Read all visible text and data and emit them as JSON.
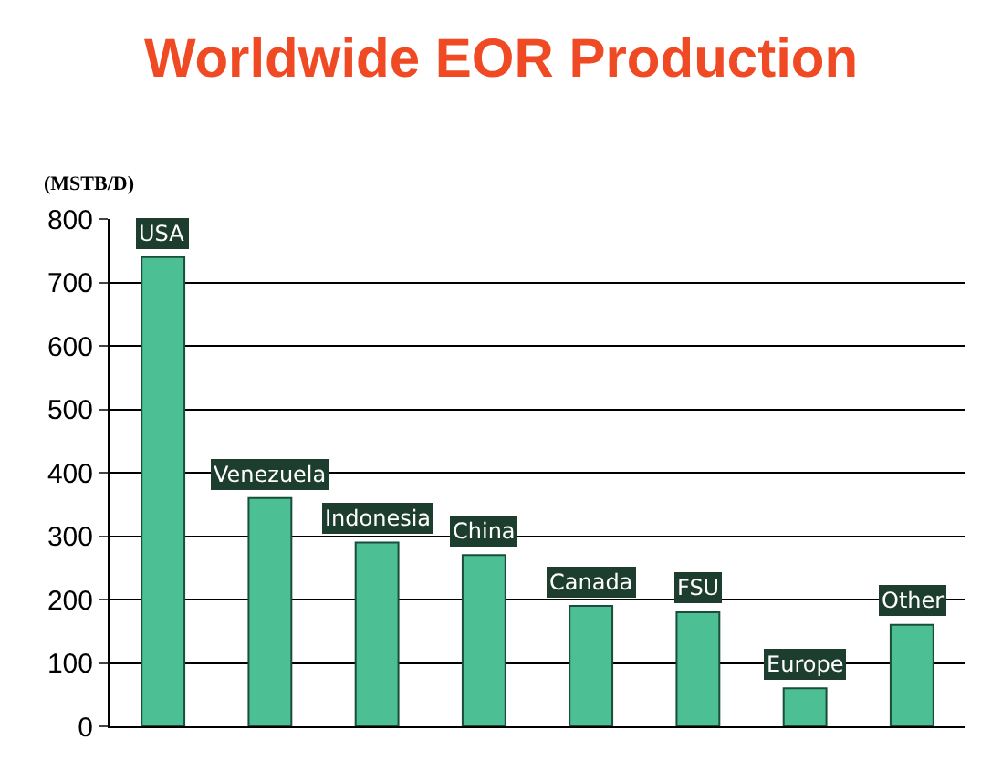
{
  "chart_data": {
    "type": "bar",
    "title": "Worldwide EOR Production",
    "ylabel": "(MSTB/D)",
    "categories": [
      "USA",
      "Venezuela",
      "Indonesia",
      "China",
      "Canada",
      "FSU",
      "Europe",
      "Other"
    ],
    "values": [
      740,
      360,
      290,
      270,
      190,
      180,
      60,
      160
    ],
    "color": "#4dbf94",
    "ylim": [
      0,
      800
    ],
    "yticks": [
      0,
      100,
      200,
      300,
      400,
      500,
      600,
      700,
      800
    ],
    "grid": "y",
    "legend": false
  }
}
